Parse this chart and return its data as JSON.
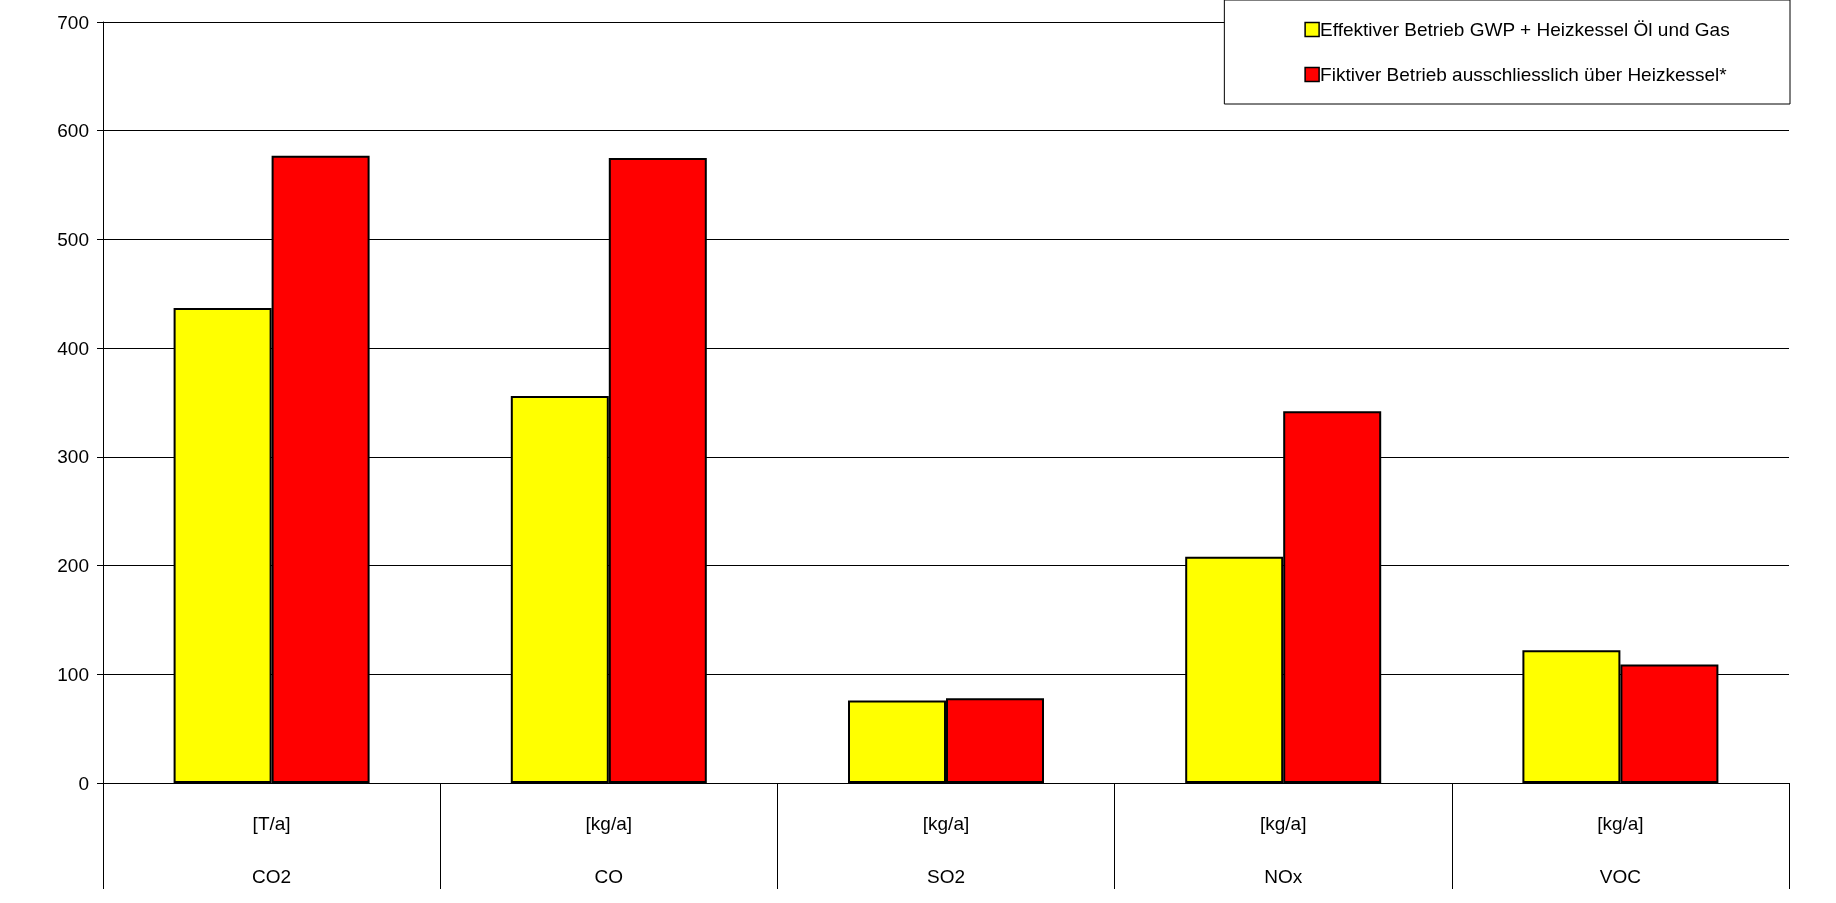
{
  "chart_data": {
    "type": "bar",
    "categories": [
      "[T/a]\nCO2",
      "[kg/a]\nCO",
      "[kg/a]\nSO2",
      "[kg/a]\nNOx",
      "[kg/a]\nVOC"
    ],
    "series": [
      {
        "name": "Effektiver Betrieb GWP + Heizkessel Öl und Gas",
        "color": "#ffff00",
        "values": [
          437,
          356,
          76,
          208,
          122
        ]
      },
      {
        "name": "Fiktiver Betrieb ausschliesslich über Heizkessel*",
        "color": "#ff0000",
        "values": [
          577,
          575,
          78,
          342,
          109
        ]
      }
    ],
    "ylim": [
      0,
      700
    ],
    "yticks": [
      0,
      100,
      200,
      300,
      400,
      500,
      600,
      700
    ],
    "grid": "y",
    "legend": "top right"
  }
}
